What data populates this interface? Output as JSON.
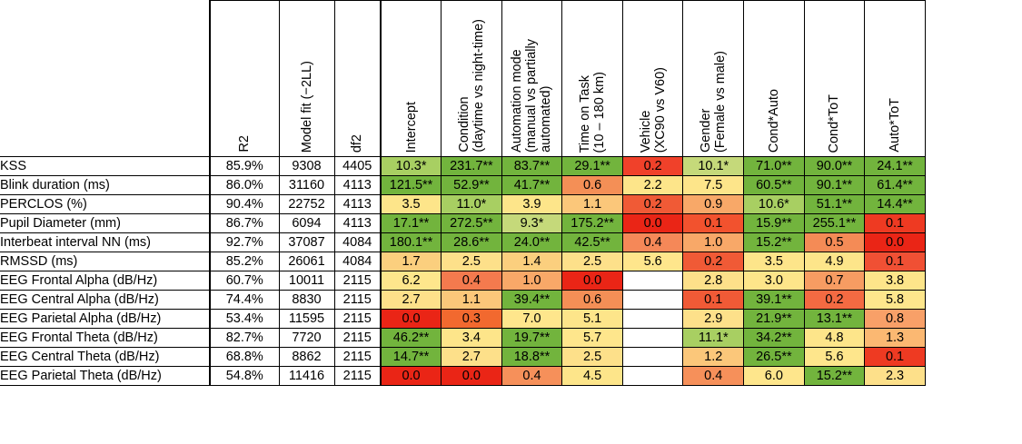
{
  "chart_data": {
    "type": "heatmap",
    "stat_columns": [
      "R2",
      "Model fit (−2LL)",
      "df2"
    ],
    "predictor_columns": [
      [
        "Intercept"
      ],
      [
        "Condition",
        "(daytime vs night-time)"
      ],
      [
        "Automation mode",
        "(manual vs partially",
        "automated)"
      ],
      [
        "Time on Task",
        "(10 – 180 km)"
      ],
      [
        "Vehicle",
        "(XC90 vs V60)"
      ],
      [
        "Gender",
        "(Female vs male)"
      ],
      [
        "Cond*Auto"
      ],
      [
        "Cond*ToT"
      ],
      [
        "Auto*ToT"
      ]
    ],
    "rows": [
      {
        "label": "KSS",
        "r2": "85.9%",
        "fit": "9308",
        "df2": "4405",
        "values": [
          "10.3*",
          "231.7**",
          "83.7**",
          "29.1**",
          "0.2",
          "10.1*",
          "71.0**",
          "90.0**",
          "24.1**"
        ],
        "colors": [
          "#a8cf62",
          "#72b43d",
          "#72b43d",
          "#72b43d",
          "#f0412a",
          "#c5d97a",
          "#72b43d",
          "#72b43d",
          "#72b43d"
        ]
      },
      {
        "label": "Blink duration (ms)",
        "r2": "86.0%",
        "fit": "31160",
        "df2": "4113",
        "values": [
          "121.5**",
          "52.9**",
          "41.7**",
          "0.6",
          "2.2",
          "7.5",
          "60.5**",
          "90.1**",
          "61.4**"
        ],
        "colors": [
          "#72b43d",
          "#72b43d",
          "#72b43d",
          "#f48f56",
          "#fde58a",
          "#fde58a",
          "#72b43d",
          "#72b43d",
          "#72b43d"
        ]
      },
      {
        "label": "PERCLOS (%)",
        "r2": "90.4%",
        "fit": "22752",
        "df2": "4113",
        "values": [
          "3.5",
          "11.0*",
          "3.9",
          "1.1",
          "0.2",
          "0.9",
          "10.6*",
          "51.1**",
          "14.4**"
        ],
        "colors": [
          "#fde58a",
          "#a8cf62",
          "#fde58a",
          "#fbc77a",
          "#f05a36",
          "#f8a868",
          "#a8cf62",
          "#72b43d",
          "#72b43d"
        ]
      },
      {
        "label": "Pupil Diameter (mm)",
        "r2": "86.7%",
        "fit": "6094",
        "df2": "4113",
        "values": [
          "17.1**",
          "272.5**",
          "9.3*",
          "175.2**",
          "0.0",
          "0.1",
          "15.9**",
          "255.1**",
          "0.1"
        ],
        "colors": [
          "#72b43d",
          "#72b43d",
          "#c5d97a",
          "#72b43d",
          "#ea2516",
          "#f2522e",
          "#72b43d",
          "#72b43d",
          "#ee3a22"
        ]
      },
      {
        "label": "Interbeat interval NN (ms)",
        "r2": "92.7%",
        "fit": "37087",
        "df2": "4084",
        "values": [
          "180.1**",
          "28.6**",
          "24.0**",
          "42.5**",
          "0.4",
          "1.0",
          "15.2**",
          "0.5",
          "0.0"
        ],
        "colors": [
          "#72b43d",
          "#72b43d",
          "#72b43d",
          "#72b43d",
          "#f58858",
          "#f8a868",
          "#72b43d",
          "#f48b56",
          "#ea2516"
        ]
      },
      {
        "label": "RMSSD (ms)",
        "r2": "85.2%",
        "fit": "26061",
        "df2": "4084",
        "values": [
          "1.7",
          "2.5",
          "1.4",
          "2.5",
          "5.6",
          "0.2",
          "3.5",
          "4.9",
          "0.1"
        ],
        "colors": [
          "#fbcf7e",
          "#fde08a",
          "#fbcf7e",
          "#fde08a",
          "#fee68c",
          "#f05a36",
          "#fde58a",
          "#fde58a",
          "#f05034"
        ]
      },
      {
        "label": "EEG Frontal Alpha (dB/Hz)",
        "r2": "60.7%",
        "fit": "10011",
        "df2": "2115",
        "values": [
          "6.2",
          "0.4",
          "1.0",
          "0.0",
          "",
          "2.8",
          "3.0",
          "0.7",
          "3.8"
        ],
        "colors": [
          "#fee68c",
          "#f47a4e",
          "#f8a868",
          "#ea2516",
          "#ffffff",
          "#fde08a",
          "#fde58a",
          "#f79c62",
          "#fde58a"
        ]
      },
      {
        "label": "EEG Central Alpha (dB/Hz)",
        "r2": "74.4%",
        "fit": "8830",
        "df2": "2115",
        "values": [
          "2.7",
          "1.1",
          "39.4**",
          "0.6",
          "",
          "0.1",
          "39.1**",
          "0.2",
          "5.8"
        ],
        "colors": [
          "#fde08a",
          "#fbc77a",
          "#72b43d",
          "#f48f56",
          "#ffffff",
          "#f05a36",
          "#72b43d",
          "#f46a42",
          "#fee68c"
        ]
      },
      {
        "label": "EEG Parietal Alpha (dB/Hz)",
        "r2": "53.4%",
        "fit": "11595",
        "df2": "2115",
        "values": [
          "0.0",
          "0.3",
          "7.0",
          "5.1",
          "",
          "2.9",
          "21.9**",
          "13.1**",
          "0.8"
        ],
        "colors": [
          "#ea2516",
          "#f2692f",
          "#fee68c",
          "#fde58a",
          "#ffffff",
          "#fde08a",
          "#72b43d",
          "#72b43d",
          "#f8a068"
        ]
      },
      {
        "label": "EEG Frontal Theta (dB/Hz)",
        "r2": "82.7%",
        "fit": "7720",
        "df2": "2115",
        "values": [
          "46.2**",
          "3.4",
          "19.7**",
          "5.7",
          "",
          "11.1*",
          "34.2**",
          "4.8",
          "1.3"
        ],
        "colors": [
          "#72b43d",
          "#fde58a",
          "#72b43d",
          "#fee68c",
          "#ffffff",
          "#a8cf62",
          "#72b43d",
          "#fde58a",
          "#fbb872"
        ]
      },
      {
        "label": "EEG Central Theta (dB/Hz)",
        "r2": "68.8%",
        "fit": "8862",
        "df2": "2115",
        "values": [
          "14.7**",
          "2.7",
          "18.8**",
          "2.5",
          "",
          "1.2",
          "26.5**",
          "5.6",
          "0.1"
        ],
        "colors": [
          "#72b43d",
          "#fde08a",
          "#72b43d",
          "#fde08a",
          "#ffffff",
          "#fbc77a",
          "#72b43d",
          "#fee68c",
          "#ee3a22"
        ]
      },
      {
        "label": "EEG Parietal Theta (dB/Hz)",
        "r2": "54.8%",
        "fit": "11416",
        "df2": "2115",
        "values": [
          "0.0",
          "0.0",
          "0.4",
          "4.5",
          "",
          "0.4",
          "6.0",
          "15.2**",
          "2.3"
        ],
        "colors": [
          "#ea2516",
          "#ea2516",
          "#f6905a",
          "#fde58a",
          "#ffffff",
          "#f6905a",
          "#fee68c",
          "#72b43d",
          "#fde08a"
        ]
      }
    ]
  }
}
